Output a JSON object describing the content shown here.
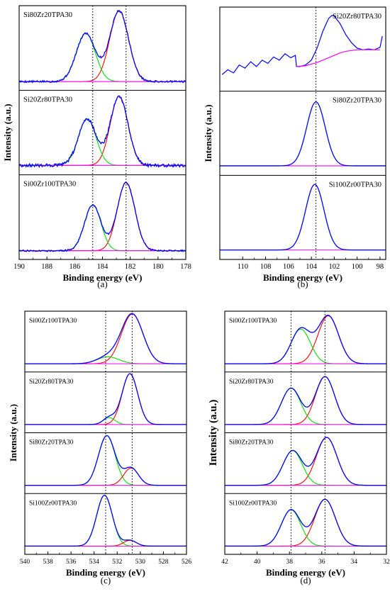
{
  "chart_data": [
    {
      "type": "line",
      "panel_label": "(a)",
      "xlabel": "Binding energy (eV)",
      "ylabel": "Intensity (a.u.)",
      "xlim": [
        190,
        178
      ],
      "x_ticks": [
        190,
        188,
        186,
        184,
        182,
        180,
        178
      ],
      "reference_lines": [
        184.7,
        182.3
      ],
      "colors": {
        "envelope": "#0000ff",
        "peak_low_be": "#ff0000",
        "peak_high_be": "#00dd00",
        "background": "#ff00ff"
      },
      "subplots": [
        {
          "label": "Si80Zr20TPA30",
          "noise": 0.012,
          "background": 0.02,
          "peaks": [
            {
              "center": 182.8,
              "height": 0.88,
              "fwhm": 1.6,
              "color": "#ff0000"
            },
            {
              "center": 185.2,
              "height": 0.6,
              "fwhm": 1.6,
              "color": "#00dd00"
            }
          ]
        },
        {
          "label": "Si20Zr80TPA30",
          "noise": 0.02,
          "background": 0.03,
          "peaks": [
            {
              "center": 182.8,
              "height": 0.86,
              "fwhm": 1.5,
              "color": "#ff0000"
            },
            {
              "center": 185.1,
              "height": 0.58,
              "fwhm": 1.5,
              "color": "#00dd00"
            }
          ]
        },
        {
          "label": "Si00Zr100TPA30",
          "noise": 0.01,
          "background": 0.02,
          "peaks": [
            {
              "center": 182.3,
              "height": 0.85,
              "fwhm": 1.5,
              "color": "#ff0000"
            },
            {
              "center": 184.7,
              "height": 0.57,
              "fwhm": 1.4,
              "color": "#00dd00"
            }
          ]
        }
      ]
    },
    {
      "type": "line",
      "panel_label": "(b)",
      "xlabel": "Binding energy (eV)",
      "ylabel": "Intensity (a.u.)",
      "xlim": [
        112,
        97.5
      ],
      "x_ticks": [
        110,
        108,
        106,
        104,
        102,
        100,
        98
      ],
      "reference_lines": [
        103.6
      ],
      "colors": {
        "envelope": "#0000ff",
        "background": "#ff00ff"
      },
      "subplots": [
        {
          "label": "Si20Zr80TPA30",
          "noise": 0.0,
          "background": 0.0,
          "segments": [
            {
              "x": [
                111.8,
                111.3,
                110.8,
                110.3,
                109.8,
                109.3,
                108.8,
                108.3,
                107.8,
                107.3,
                106.8,
                106.3,
                105.8,
                105.4,
                105.3,
                105.0,
                104.5,
                104.0,
                103.5,
                103.0,
                102.5,
                102.2,
                102.0,
                101.5,
                101.0,
                100.5,
                100.0,
                99.5,
                99.0,
                98.5,
                98.0,
                97.8
              ],
              "y": [
                0.12,
                0.18,
                0.14,
                0.24,
                0.2,
                0.28,
                0.22,
                0.3,
                0.26,
                0.34,
                0.3,
                0.38,
                0.33,
                0.36,
                0.22,
                0.22,
                0.24,
                0.3,
                0.45,
                0.66,
                0.82,
                0.86,
                0.85,
                0.76,
                0.62,
                0.52,
                0.45,
                0.43,
                0.44,
                0.43,
                0.46,
                0.6
              ],
              "color": "#0000ff"
            },
            {
              "x": [
                105.3,
                104.5,
                104.0,
                103.5,
                103.0,
                102.5,
                102.0,
                101.5,
                101.0,
                100.5,
                100.0,
                99.5,
                99.0,
                98.5,
                98.0
              ],
              "y": [
                0.22,
                0.23,
                0.25,
                0.27,
                0.3,
                0.33,
                0.36,
                0.39,
                0.41,
                0.42,
                0.43,
                0.43,
                0.43,
                0.43,
                0.43
              ],
              "color": "#ff00ff"
            }
          ]
        },
        {
          "label": "Si80Zr20TPA30",
          "noise": 0.0,
          "background": 0.03,
          "peaks": [
            {
              "center": 103.6,
              "height": 0.8,
              "fwhm": 1.9,
              "color": "#0000ff"
            }
          ]
        },
        {
          "label": "Si100Zr00TPA30",
          "noise": 0.0,
          "background": 0.03,
          "peaks": [
            {
              "center": 103.7,
              "height": 0.82,
              "fwhm": 1.9,
              "color": "#0000ff"
            }
          ]
        }
      ]
    },
    {
      "type": "line",
      "panel_label": "(c)",
      "xlabel": "Binding energy (eV)",
      "ylabel": "Intensity (a.u.)",
      "xlim": [
        540,
        526
      ],
      "x_ticks": [
        540,
        538,
        536,
        534,
        532,
        530,
        528,
        526
      ],
      "reference_lines": [
        533.0,
        530.7
      ],
      "colors": {
        "envelope": "#0000ff",
        "peak_low_be": "#ff0000",
        "peak_high_be": "#00dd00",
        "background": "#ff00ff"
      },
      "subplots": [
        {
          "label": "Si00Zr100TPA30",
          "noise": 0.0,
          "background": 0.02,
          "peaks": [
            {
              "center": 530.7,
              "height": 0.86,
              "fwhm": 2.2,
              "color": "#ff0000"
            },
            {
              "center": 532.8,
              "height": 0.12,
              "fwhm": 2.2,
              "color": "#00dd00"
            }
          ]
        },
        {
          "label": "Si20Zr80TPA30",
          "noise": 0.0,
          "background": 0.02,
          "peaks": [
            {
              "center": 530.9,
              "height": 0.88,
              "fwhm": 1.6,
              "color": "#ff0000"
            },
            {
              "center": 532.7,
              "height": 0.12,
              "fwhm": 1.2,
              "color": "#00dd00"
            }
          ]
        },
        {
          "label": "Si80Zr20TPA30",
          "noise": 0.0,
          "background": 0.02,
          "peaks": [
            {
              "center": 532.9,
              "height": 0.86,
              "fwhm": 1.7,
              "color": "#00dd00"
            },
            {
              "center": 530.8,
              "height": 0.3,
              "fwhm": 1.5,
              "color": "#ff0000"
            }
          ]
        },
        {
          "label": "Si100Zr00TPA30",
          "noise": 0.0,
          "background": 0.02,
          "peaks": [
            {
              "center": 533.1,
              "height": 0.88,
              "fwhm": 1.6,
              "color": "#00dd00"
            },
            {
              "center": 530.9,
              "height": 0.1,
              "fwhm": 1.3,
              "color": "#ff0000"
            }
          ]
        }
      ]
    },
    {
      "type": "line",
      "panel_label": "(d)",
      "xlabel": "Binding energy (eV)",
      "ylabel": "Intensity (a.u.)",
      "xlim": [
        42,
        32
      ],
      "x_ticks": [
        42,
        40,
        38,
        36,
        34,
        32
      ],
      "reference_lines": [
        37.9,
        35.8
      ],
      "colors": {
        "envelope": "#0000ff",
        "peak_low_be": "#ff0000",
        "peak_high_be": "#00dd00",
        "background": "#ff00ff"
      },
      "subplots": [
        {
          "label": "Si00Zr100TPA30",
          "noise": 0.0,
          "background": 0.02,
          "peaks": [
            {
              "center": 35.6,
              "height": 0.83,
              "fwhm": 1.5,
              "color": "#ff0000"
            },
            {
              "center": 37.3,
              "height": 0.6,
              "fwhm": 1.4,
              "color": "#00dd00"
            }
          ]
        },
        {
          "label": "Si20Zr80TPA30",
          "noise": 0.0,
          "background": 0.02,
          "peaks": [
            {
              "center": 35.8,
              "height": 0.83,
              "fwhm": 1.4,
              "color": "#ff0000"
            },
            {
              "center": 37.9,
              "height": 0.63,
              "fwhm": 1.4,
              "color": "#00dd00"
            }
          ]
        },
        {
          "label": "Si80Zr20TPA30",
          "noise": 0.0,
          "background": 0.02,
          "peaks": [
            {
              "center": 35.7,
              "height": 0.83,
              "fwhm": 1.5,
              "color": "#ff0000"
            },
            {
              "center": 37.8,
              "height": 0.6,
              "fwhm": 1.4,
              "color": "#00dd00"
            }
          ]
        },
        {
          "label": "Si100Zr00TPA30",
          "noise": 0.0,
          "background": 0.02,
          "peaks": [
            {
              "center": 35.8,
              "height": 0.81,
              "fwhm": 1.5,
              "color": "#ff0000"
            },
            {
              "center": 37.9,
              "height": 0.63,
              "fwhm": 1.4,
              "color": "#00dd00"
            }
          ]
        }
      ]
    }
  ]
}
